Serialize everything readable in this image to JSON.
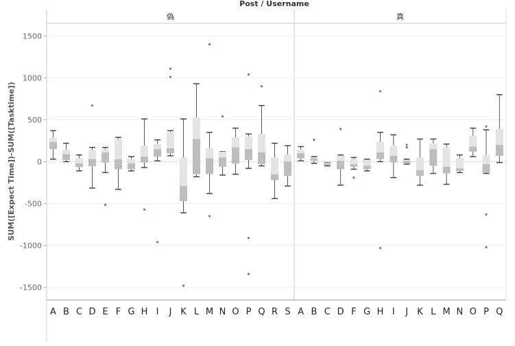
{
  "chart_data": {
    "type": "boxplot",
    "title": "Post / Username",
    "ylabel": "SUM([Expect Time])-SUM([Tasktime])",
    "ylim": [
      -1650,
      1650
    ],
    "yticks": [
      1500,
      1000,
      500,
      0,
      -500,
      -1000,
      -1500
    ],
    "yticklabels": [
      "1500",
      "1000",
      "500",
      "0",
      "-500",
      "-1000",
      "-1500"
    ],
    "grid": true,
    "panels": [
      {
        "label": "偽",
        "categories": [
          "A",
          "B",
          "C",
          "D",
          "E",
          "F",
          "G",
          "H",
          "I",
          "J",
          "K",
          "L",
          "M",
          "N",
          "O",
          "P",
          "Q",
          "R",
          "S"
        ],
        "boxes": [
          {
            "min": 30,
            "q1": 150,
            "median": 235,
            "q3": 285,
            "max": 370,
            "outliers": []
          },
          {
            "min": 0,
            "q1": 20,
            "median": 90,
            "q3": 140,
            "max": 220,
            "outliers": []
          },
          {
            "min": -110,
            "q1": -65,
            "median": -20,
            "q3": 40,
            "max": 80,
            "outliers": []
          },
          {
            "min": -315,
            "q1": -55,
            "median": 30,
            "q3": 140,
            "max": 170,
            "outliers": [
              670
            ]
          },
          {
            "min": -130,
            "q1": -10,
            "median": 110,
            "q3": 150,
            "max": 170,
            "outliers": [
              -515
            ]
          },
          {
            "min": -330,
            "q1": -90,
            "median": 30,
            "q3": 270,
            "max": 290,
            "outliers": []
          },
          {
            "min": -110,
            "q1": -90,
            "median": -20,
            "q3": 30,
            "max": 60,
            "outliers": []
          },
          {
            "min": -70,
            "q1": -10,
            "median": 60,
            "q3": 190,
            "max": 510,
            "outliers": [
              -570
            ]
          },
          {
            "min": 10,
            "q1": 60,
            "median": 150,
            "q3": 210,
            "max": 260,
            "outliers": [
              -960
            ]
          },
          {
            "min": 70,
            "q1": 100,
            "median": 160,
            "q3": 350,
            "max": 370,
            "outliers": [
              1110,
              1010
            ]
          },
          {
            "min": -610,
            "q1": -470,
            "median": -290,
            "q3": 50,
            "max": 510,
            "outliers": [
              -1480
            ]
          },
          {
            "min": -180,
            "q1": -150,
            "median": 270,
            "q3": 530,
            "max": 930,
            "outliers": []
          },
          {
            "min": -380,
            "q1": -150,
            "median": 40,
            "q3": 160,
            "max": 350,
            "outliers": [
              1400,
              -650
            ]
          },
          {
            "min": -160,
            "q1": -60,
            "median": 50,
            "q3": 120,
            "max": 120,
            "outliers": [
              540
            ]
          },
          {
            "min": -150,
            "q1": -20,
            "median": 170,
            "q3": 290,
            "max": 400,
            "outliers": []
          },
          {
            "min": -80,
            "q1": 20,
            "median": 150,
            "q3": 300,
            "max": 330,
            "outliers": [
              1040,
              -910,
              -1340
            ]
          },
          {
            "min": -50,
            "q1": -30,
            "median": 110,
            "q3": 330,
            "max": 670,
            "outliers": [
              900
            ]
          },
          {
            "min": -440,
            "q1": -220,
            "median": -150,
            "q3": 50,
            "max": 220,
            "outliers": []
          },
          {
            "min": -290,
            "q1": -170,
            "median": 0,
            "q3": 90,
            "max": 190,
            "outliers": []
          }
        ]
      },
      {
        "label": "真",
        "categories": [
          "A",
          "B",
          "C",
          "D",
          "F",
          "G",
          "H",
          "I",
          "J",
          "K",
          "L",
          "M",
          "N",
          "O",
          "P",
          "Q"
        ],
        "boxes": [
          {
            "min": 10,
            "q1": 40,
            "median": 100,
            "q3": 140,
            "max": 180,
            "outliers": []
          },
          {
            "min": -20,
            "q1": 10,
            "median": 40,
            "q3": 50,
            "max": 60,
            "outliers": [
              260
            ]
          },
          {
            "min": -50,
            "q1": -40,
            "median": -20,
            "q3": -10,
            "max": -10,
            "outliers": []
          },
          {
            "min": -280,
            "q1": -90,
            "median": 10,
            "q3": 70,
            "max": 80,
            "outliers": [
              390
            ]
          },
          {
            "min": -90,
            "q1": -60,
            "median": -30,
            "q3": 30,
            "max": 50,
            "outliers": [
              -190
            ]
          },
          {
            "min": -110,
            "q1": -90,
            "median": -50,
            "q3": 20,
            "max": 30,
            "outliers": []
          },
          {
            "min": 0,
            "q1": 30,
            "median": 110,
            "q3": 240,
            "max": 350,
            "outliers": [
              840,
              -1030
            ]
          },
          {
            "min": -190,
            "q1": -10,
            "median": 70,
            "q3": 190,
            "max": 320,
            "outliers": []
          },
          {
            "min": -30,
            "q1": -20,
            "median": 10,
            "q3": 20,
            "max": 30,
            "outliers": [
              200,
              170
            ]
          },
          {
            "min": -280,
            "q1": -170,
            "median": -100,
            "q3": 50,
            "max": 270,
            "outliers": []
          },
          {
            "min": -140,
            "q1": -50,
            "median": 150,
            "q3": 220,
            "max": 270,
            "outliers": []
          },
          {
            "min": -270,
            "q1": -140,
            "median": -60,
            "q3": 170,
            "max": 210,
            "outliers": []
          },
          {
            "min": -130,
            "q1": -110,
            "median": -80,
            "q3": 40,
            "max": 80,
            "outliers": []
          },
          {
            "min": 60,
            "q1": 120,
            "median": 180,
            "q3": 310,
            "max": 400,
            "outliers": []
          },
          {
            "min": -140,
            "q1": -130,
            "median": -30,
            "q3": 80,
            "max": 380,
            "outliers": [
              420,
              -630,
              -1020
            ]
          },
          {
            "min": -10,
            "q1": 70,
            "median": 200,
            "q3": 390,
            "max": 800,
            "outliers": []
          }
        ]
      }
    ]
  }
}
